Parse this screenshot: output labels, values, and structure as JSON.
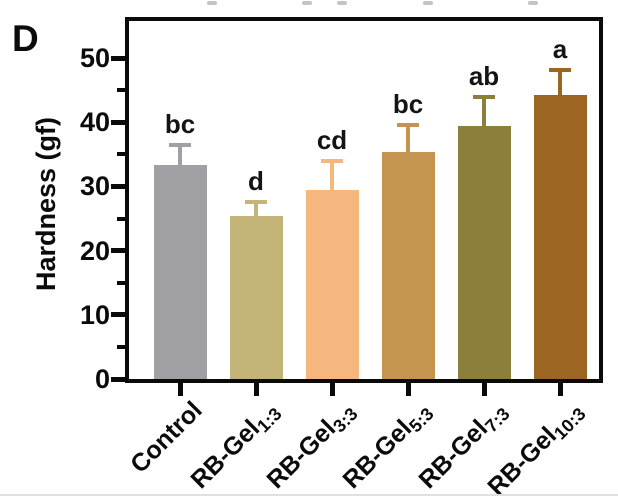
{
  "page": {
    "panel_label": "D"
  },
  "chart_data": {
    "type": "bar",
    "title": "",
    "xlabel": "",
    "ylabel": "Hardness (gf)",
    "ylim": [
      0,
      56
    ],
    "yticks_major": [
      0,
      10,
      20,
      30,
      40,
      50
    ],
    "yticks_minor": [
      5,
      15,
      25,
      35,
      45
    ],
    "grid": false,
    "framed_plot": true,
    "legend": "none",
    "categories": [
      {
        "main": "Control",
        "sub": ""
      },
      {
        "main": "RB-Gel",
        "sub": "1:3"
      },
      {
        "main": "RB-Gel",
        "sub": "3:3"
      },
      {
        "main": "RB-Gel",
        "sub": "5:3"
      },
      {
        "main": "RB-Gel",
        "sub": "7:3"
      },
      {
        "main": "RB-Gel",
        "sub": "10:3"
      }
    ],
    "series": [
      {
        "name": "Hardness",
        "values": [
          33.4,
          25.4,
          29.4,
          35.4,
          39.4,
          44.3
        ],
        "errors_plus": [
          3.1,
          2.2,
          4.5,
          4.2,
          4.5,
          3.9
        ]
      }
    ],
    "sig_letters": [
      "bc",
      "d",
      "cd",
      "bc",
      "ab",
      "a"
    ],
    "bar_colors": [
      "#a09fa4",
      "#c4b478",
      "#f5b77d",
      "#c49551",
      "#8c7e3b",
      "#9d6522"
    ],
    "axis_color": "#0a0a0a",
    "text_color": "#111111"
  }
}
